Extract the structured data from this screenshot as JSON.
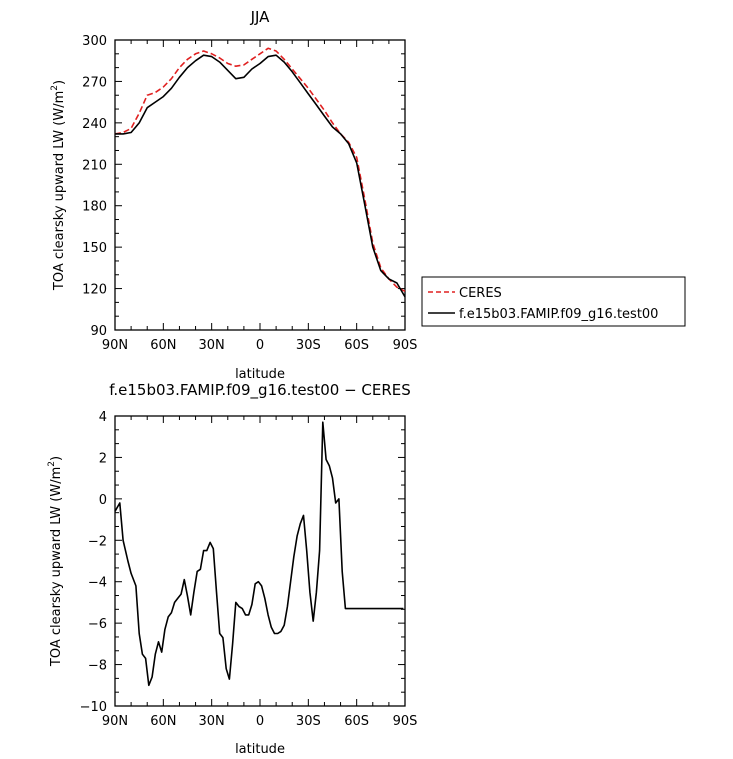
{
  "chart_data": [
    {
      "type": "line",
      "title": "JJA",
      "xlabel": "latitude",
      "ylabel_main": "TOA clearsky upward LW (W/m",
      "ylabel_sup": "2",
      "ylabel_end": ")",
      "xlim": [
        90,
        -90
      ],
      "ylim": [
        90,
        300
      ],
      "xticks": [
        90,
        60,
        30,
        0,
        -30,
        -60,
        -90
      ],
      "xtick_labels": [
        "90N",
        "60N",
        "30N",
        "0",
        "30S",
        "60S",
        "90S"
      ],
      "yticks": [
        90,
        120,
        150,
        180,
        210,
        240,
        270,
        300
      ],
      "ytick_labels": [
        "90",
        "120",
        "150",
        "180",
        "210",
        "240",
        "270",
        "300"
      ],
      "grid": false,
      "legend": "right",
      "series": [
        {
          "name": "CERES",
          "color": "#e02020",
          "dash": true,
          "x": [
            90,
            85,
            80,
            75,
            70,
            65,
            60,
            55,
            50,
            45,
            40,
            35,
            30,
            25,
            20,
            15,
            10,
            5,
            0,
            -5,
            -10,
            -15,
            -20,
            -25,
            -30,
            -35,
            -40,
            -45,
            -50,
            -55,
            -60,
            -65,
            -70,
            -75,
            -80,
            -85,
            -90
          ],
          "y": [
            232,
            233,
            236,
            247,
            260,
            262,
            266,
            272,
            280,
            286,
            290,
            292,
            290,
            287,
            283,
            281,
            282,
            286,
            290,
            294,
            292,
            286,
            279,
            272,
            265,
            257,
            249,
            240,
            232,
            226,
            215,
            185,
            153,
            135,
            127,
            121,
            118
          ]
        },
        {
          "name": "f.e15b03.FAMIP.f09_g16.test00",
          "color": "#000000",
          "dash": false,
          "x": [
            90,
            85,
            80,
            75,
            70,
            65,
            60,
            55,
            50,
            45,
            40,
            35,
            30,
            25,
            20,
            15,
            10,
            5,
            0,
            -5,
            -10,
            -15,
            -20,
            -25,
            -30,
            -35,
            -40,
            -45,
            -50,
            -55,
            -60,
            -65,
            -70,
            -75,
            -80,
            -85,
            -90
          ],
          "y": [
            232,
            232,
            233,
            240,
            251,
            255,
            259,
            265,
            273,
            280,
            285,
            289,
            288,
            284,
            278,
            272,
            273,
            279,
            283,
            288,
            289,
            284,
            277,
            269,
            261,
            253,
            245,
            237,
            232,
            225,
            211,
            181,
            150,
            133,
            127,
            124,
            114
          ]
        }
      ]
    },
    {
      "type": "line",
      "title": "f.e15b03.FAMIP.f09_g16.test00 − CERES",
      "xlabel": "latitude",
      "ylabel_main": "TOA clearsky upward LW (W/m",
      "ylabel_sup": "2",
      "ylabel_end": ")",
      "xlim": [
        90,
        -90
      ],
      "ylim": [
        -10,
        4
      ],
      "xticks": [
        90,
        60,
        30,
        0,
        -30,
        -60,
        -90
      ],
      "xtick_labels": [
        "90N",
        "60N",
        "30N",
        "0",
        "30S",
        "60S",
        "90S"
      ],
      "yticks": [
        -10,
        -8,
        -6,
        -4,
        -2,
        0,
        2,
        4
      ],
      "ytick_labels": [
        "−10",
        "−8",
        "−6",
        "−4",
        "−2",
        "0",
        "2",
        "4"
      ],
      "grid": false,
      "series": [
        {
          "color": "#000000",
          "dash": false,
          "x": [
            90,
            87,
            85,
            82,
            80,
            77,
            75,
            73,
            71,
            69,
            67,
            65,
            63,
            61,
            59,
            57,
            55,
            53,
            51,
            49,
            47,
            45,
            43,
            41,
            39,
            37,
            35,
            33,
            31,
            29,
            27,
            25,
            23,
            21,
            19,
            17,
            15,
            13,
            11,
            9,
            7,
            5,
            3,
            1,
            -1,
            -3,
            -5,
            -7,
            -9,
            -11,
            -13,
            -15,
            -17,
            -19,
            -21,
            -23,
            -25,
            -27,
            -29,
            -31,
            -33,
            -35,
            -37,
            -39,
            -41,
            -43,
            -45,
            -47,
            -49,
            -51,
            -53,
            -55,
            -57,
            -59,
            -61,
            -63,
            -65,
            -67,
            -69,
            -71,
            -73,
            -75,
            -77,
            -79,
            -81,
            -83,
            -85,
            -87,
            -89
          ],
          "y": [
            -0.6,
            -0.2,
            -2.0,
            -3.0,
            -3.6,
            -4.2,
            -6.5,
            -7.5,
            -7.7,
            -9.0,
            -8.6,
            -7.5,
            -6.9,
            -7.4,
            -6.3,
            -5.7,
            -5.5,
            -5.0,
            -4.8,
            -4.6,
            -3.9,
            -4.7,
            -5.6,
            -4.5,
            -3.5,
            -3.4,
            -2.5,
            -2.5,
            -2.1,
            -2.4,
            -4.5,
            -6.5,
            -6.7,
            -8.2,
            -8.7,
            -7.0,
            -5.0,
            -5.2,
            -5.3,
            -5.6,
            -5.6,
            -5.1,
            -4.1,
            -4.0,
            -4.2,
            -4.8,
            -5.6,
            -6.2,
            -6.5,
            -6.5,
            -6.4,
            -6.1,
            -5.2,
            -4.0,
            -2.8,
            -1.8,
            -1.2,
            -0.8,
            -2.5,
            -4.5,
            -5.9,
            -4.5,
            -2.5,
            3.7,
            1.9,
            1.6,
            1.0,
            -0.2,
            0.0,
            -3.5,
            -5.3,
            -5.3,
            -5.3,
            -5.3,
            -5.3,
            -5.3,
            -5.3,
            -5.3,
            -5.3,
            -5.3,
            -5.3,
            -5.3,
            -5.3,
            -5.3,
            -5.3,
            -5.3,
            -5.3,
            -5.3,
            -5.3
          ]
        }
      ]
    }
  ]
}
